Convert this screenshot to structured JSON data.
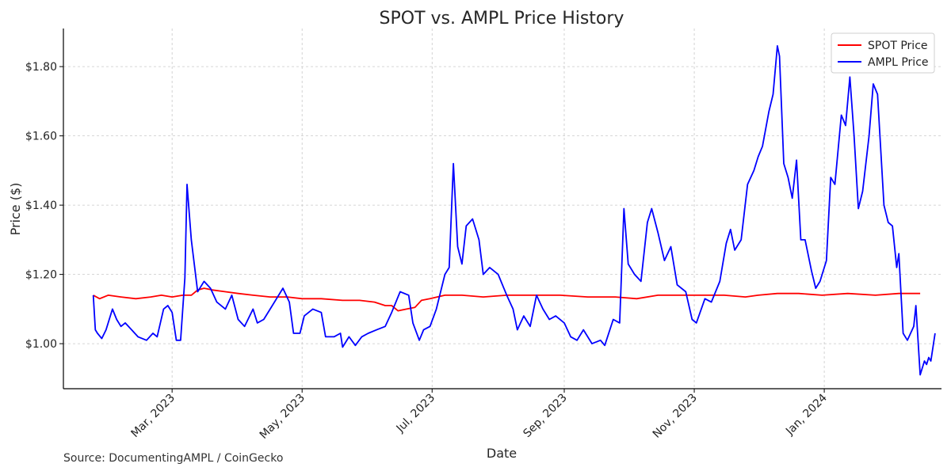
{
  "chart_data": {
    "type": "line",
    "title": "SPOT vs. AMPL Price History",
    "xlabel": "Date",
    "ylabel": "Price ($)",
    "source": "Source: DocumentingAMPL / CoinGecko",
    "x_range": [
      "2023-01-09",
      "2024-02-25"
    ],
    "y_range": [
      0.87,
      1.91
    ],
    "y_ticks": [
      1.0,
      1.2,
      1.4,
      1.6,
      1.8
    ],
    "y_tick_labels": [
      "$1.00",
      "$1.20",
      "$1.40",
      "$1.60",
      "$1.80"
    ],
    "x_ticks": [
      "2023-03-01",
      "2023-05-01",
      "2023-07-01",
      "2023-09-01",
      "2023-11-01",
      "2024-01-01"
    ],
    "x_tick_labels": [
      "Mar, 2023",
      "May, 2023",
      "Jul, 2023",
      "Sep, 2023",
      "Nov, 2023",
      "Jan, 2024"
    ],
    "grid": true,
    "legend_position": "top-right",
    "series": [
      {
        "name": "SPOT Price",
        "color": "#ff0000",
        "points": [
          [
            "2023-01-23",
            1.14
          ],
          [
            "2023-01-26",
            1.13
          ],
          [
            "2023-01-30",
            1.14
          ],
          [
            "2023-02-05",
            1.135
          ],
          [
            "2023-02-12",
            1.13
          ],
          [
            "2023-02-19",
            1.135
          ],
          [
            "2023-02-24",
            1.14
          ],
          [
            "2023-03-01",
            1.135
          ],
          [
            "2023-03-06",
            1.14
          ],
          [
            "2023-03-10",
            1.14
          ],
          [
            "2023-03-13",
            1.155
          ],
          [
            "2023-03-16",
            1.16
          ],
          [
            "2023-03-20",
            1.155
          ],
          [
            "2023-03-26",
            1.15
          ],
          [
            "2023-04-01",
            1.145
          ],
          [
            "2023-04-08",
            1.14
          ],
          [
            "2023-04-16",
            1.135
          ],
          [
            "2023-04-24",
            1.135
          ],
          [
            "2023-05-01",
            1.13
          ],
          [
            "2023-05-10",
            1.13
          ],
          [
            "2023-05-20",
            1.125
          ],
          [
            "2023-05-28",
            1.125
          ],
          [
            "2023-06-04",
            1.12
          ],
          [
            "2023-06-09",
            1.11
          ],
          [
            "2023-06-12",
            1.11
          ],
          [
            "2023-06-15",
            1.095
          ],
          [
            "2023-06-19",
            1.1
          ],
          [
            "2023-06-23",
            1.105
          ],
          [
            "2023-06-26",
            1.125
          ],
          [
            "2023-06-30",
            1.13
          ],
          [
            "2023-07-07",
            1.14
          ],
          [
            "2023-07-15",
            1.14
          ],
          [
            "2023-07-25",
            1.135
          ],
          [
            "2023-08-05",
            1.14
          ],
          [
            "2023-08-18",
            1.14
          ],
          [
            "2023-08-30",
            1.14
          ],
          [
            "2023-09-12",
            1.135
          ],
          [
            "2023-09-25",
            1.135
          ],
          [
            "2023-10-05",
            1.13
          ],
          [
            "2023-10-15",
            1.14
          ],
          [
            "2023-10-25",
            1.14
          ],
          [
            "2023-11-05",
            1.14
          ],
          [
            "2023-11-15",
            1.14
          ],
          [
            "2023-11-25",
            1.135
          ],
          [
            "2023-12-01",
            1.14
          ],
          [
            "2023-12-10",
            1.145
          ],
          [
            "2023-12-20",
            1.145
          ],
          [
            "2023-12-31",
            1.14
          ],
          [
            "2024-01-12",
            1.145
          ],
          [
            "2024-01-25",
            1.14
          ],
          [
            "2024-02-05",
            1.145
          ],
          [
            "2024-02-15",
            1.145
          ]
        ]
      },
      {
        "name": "AMPL Price",
        "color": "#0000ff",
        "points": [
          [
            "2023-01-23",
            1.14
          ],
          [
            "2023-01-24",
            1.04
          ],
          [
            "2023-01-25",
            1.03
          ],
          [
            "2023-01-27",
            1.015
          ],
          [
            "2023-01-29",
            1.04
          ],
          [
            "2023-02-01",
            1.1
          ],
          [
            "2023-02-03",
            1.07
          ],
          [
            "2023-02-05",
            1.05
          ],
          [
            "2023-02-07",
            1.06
          ],
          [
            "2023-02-10",
            1.04
          ],
          [
            "2023-02-13",
            1.02
          ],
          [
            "2023-02-17",
            1.01
          ],
          [
            "2023-02-20",
            1.03
          ],
          [
            "2023-02-22",
            1.02
          ],
          [
            "2023-02-25",
            1.1
          ],
          [
            "2023-02-27",
            1.11
          ],
          [
            "2023-03-01",
            1.09
          ],
          [
            "2023-03-03",
            1.01
          ],
          [
            "2023-03-05",
            1.01
          ],
          [
            "2023-03-07",
            1.19
          ],
          [
            "2023-03-08",
            1.46
          ],
          [
            "2023-03-10",
            1.3
          ],
          [
            "2023-03-13",
            1.15
          ],
          [
            "2023-03-16",
            1.18
          ],
          [
            "2023-03-19",
            1.16
          ],
          [
            "2023-03-22",
            1.12
          ],
          [
            "2023-03-26",
            1.1
          ],
          [
            "2023-03-29",
            1.14
          ],
          [
            "2023-04-01",
            1.07
          ],
          [
            "2023-04-04",
            1.05
          ],
          [
            "2023-04-08",
            1.1
          ],
          [
            "2023-04-10",
            1.06
          ],
          [
            "2023-04-13",
            1.07
          ],
          [
            "2023-04-17",
            1.11
          ],
          [
            "2023-04-22",
            1.16
          ],
          [
            "2023-04-25",
            1.12
          ],
          [
            "2023-04-27",
            1.03
          ],
          [
            "2023-04-30",
            1.03
          ],
          [
            "2023-05-02",
            1.08
          ],
          [
            "2023-05-06",
            1.1
          ],
          [
            "2023-05-10",
            1.09
          ],
          [
            "2023-05-12",
            1.02
          ],
          [
            "2023-05-16",
            1.02
          ],
          [
            "2023-05-19",
            1.03
          ],
          [
            "2023-05-20",
            0.99
          ],
          [
            "2023-05-23",
            1.02
          ],
          [
            "2023-05-26",
            0.995
          ],
          [
            "2023-05-29",
            1.02
          ],
          [
            "2023-06-01",
            1.03
          ],
          [
            "2023-06-05",
            1.04
          ],
          [
            "2023-06-09",
            1.05
          ],
          [
            "2023-06-12",
            1.09
          ],
          [
            "2023-06-16",
            1.15
          ],
          [
            "2023-06-20",
            1.14
          ],
          [
            "2023-06-22",
            1.06
          ],
          [
            "2023-06-25",
            1.01
          ],
          [
            "2023-06-27",
            1.04
          ],
          [
            "2023-06-30",
            1.05
          ],
          [
            "2023-07-03",
            1.1
          ],
          [
            "2023-07-07",
            1.2
          ],
          [
            "2023-07-09",
            1.22
          ],
          [
            "2023-07-11",
            1.52
          ],
          [
            "2023-07-13",
            1.28
          ],
          [
            "2023-07-15",
            1.23
          ],
          [
            "2023-07-17",
            1.34
          ],
          [
            "2023-07-20",
            1.36
          ],
          [
            "2023-07-23",
            1.3
          ],
          [
            "2023-07-25",
            1.2
          ],
          [
            "2023-07-28",
            1.22
          ],
          [
            "2023-08-01",
            1.2
          ],
          [
            "2023-08-05",
            1.14
          ],
          [
            "2023-08-08",
            1.1
          ],
          [
            "2023-08-10",
            1.04
          ],
          [
            "2023-08-13",
            1.08
          ],
          [
            "2023-08-16",
            1.05
          ],
          [
            "2023-08-19",
            1.14
          ],
          [
            "2023-08-22",
            1.1
          ],
          [
            "2023-08-25",
            1.07
          ],
          [
            "2023-08-28",
            1.08
          ],
          [
            "2023-09-01",
            1.06
          ],
          [
            "2023-09-04",
            1.02
          ],
          [
            "2023-09-07",
            1.01
          ],
          [
            "2023-09-10",
            1.04
          ],
          [
            "2023-09-14",
            1.0
          ],
          [
            "2023-09-18",
            1.01
          ],
          [
            "2023-09-20",
            0.995
          ],
          [
            "2023-09-24",
            1.07
          ],
          [
            "2023-09-27",
            1.06
          ],
          [
            "2023-09-29",
            1.39
          ],
          [
            "2023-10-01",
            1.23
          ],
          [
            "2023-10-04",
            1.2
          ],
          [
            "2023-10-07",
            1.18
          ],
          [
            "2023-10-10",
            1.35
          ],
          [
            "2023-10-12",
            1.39
          ],
          [
            "2023-10-15",
            1.32
          ],
          [
            "2023-10-18",
            1.24
          ],
          [
            "2023-10-21",
            1.28
          ],
          [
            "2023-10-24",
            1.17
          ],
          [
            "2023-10-28",
            1.15
          ],
          [
            "2023-10-31",
            1.07
          ],
          [
            "2023-11-02",
            1.06
          ],
          [
            "2023-11-06",
            1.13
          ],
          [
            "2023-11-09",
            1.12
          ],
          [
            "2023-11-13",
            1.18
          ],
          [
            "2023-11-16",
            1.29
          ],
          [
            "2023-11-18",
            1.33
          ],
          [
            "2023-11-20",
            1.27
          ],
          [
            "2023-11-23",
            1.3
          ],
          [
            "2023-11-26",
            1.46
          ],
          [
            "2023-11-29",
            1.5
          ],
          [
            "2023-12-01",
            1.54
          ],
          [
            "2023-12-03",
            1.57
          ],
          [
            "2023-12-06",
            1.67
          ],
          [
            "2023-12-08",
            1.72
          ],
          [
            "2023-12-10",
            1.86
          ],
          [
            "2023-12-11",
            1.83
          ],
          [
            "2023-12-13",
            1.52
          ],
          [
            "2023-12-15",
            1.48
          ],
          [
            "2023-12-17",
            1.42
          ],
          [
            "2023-12-19",
            1.53
          ],
          [
            "2023-12-21",
            1.3
          ],
          [
            "2023-12-23",
            1.3
          ],
          [
            "2023-12-26",
            1.21
          ],
          [
            "2023-12-28",
            1.16
          ],
          [
            "2023-12-30",
            1.18
          ],
          [
            "2024-01-02",
            1.24
          ],
          [
            "2024-01-04",
            1.48
          ],
          [
            "2024-01-06",
            1.46
          ],
          [
            "2024-01-09",
            1.66
          ],
          [
            "2024-01-11",
            1.63
          ],
          [
            "2024-01-13",
            1.77
          ],
          [
            "2024-01-15",
            1.6
          ],
          [
            "2024-01-17",
            1.39
          ],
          [
            "2024-01-19",
            1.44
          ],
          [
            "2024-01-22",
            1.6
          ],
          [
            "2024-01-24",
            1.75
          ],
          [
            "2024-01-26",
            1.72
          ],
          [
            "2024-01-29",
            1.4
          ],
          [
            "2024-01-31",
            1.35
          ],
          [
            "2024-02-02",
            1.34
          ],
          [
            "2024-02-04",
            1.22
          ],
          [
            "2024-02-05",
            1.26
          ],
          [
            "2024-02-07",
            1.03
          ],
          [
            "2024-02-09",
            1.01
          ],
          [
            "2024-02-12",
            1.05
          ],
          [
            "2024-02-13",
            1.11
          ],
          [
            "2024-02-15",
            0.91
          ],
          [
            "2024-02-17",
            0.95
          ],
          [
            "2024-02-18",
            0.94
          ],
          [
            "2024-02-19",
            0.96
          ],
          [
            "2024-02-20",
            0.95
          ],
          [
            "2024-02-22",
            1.03
          ]
        ]
      }
    ]
  }
}
